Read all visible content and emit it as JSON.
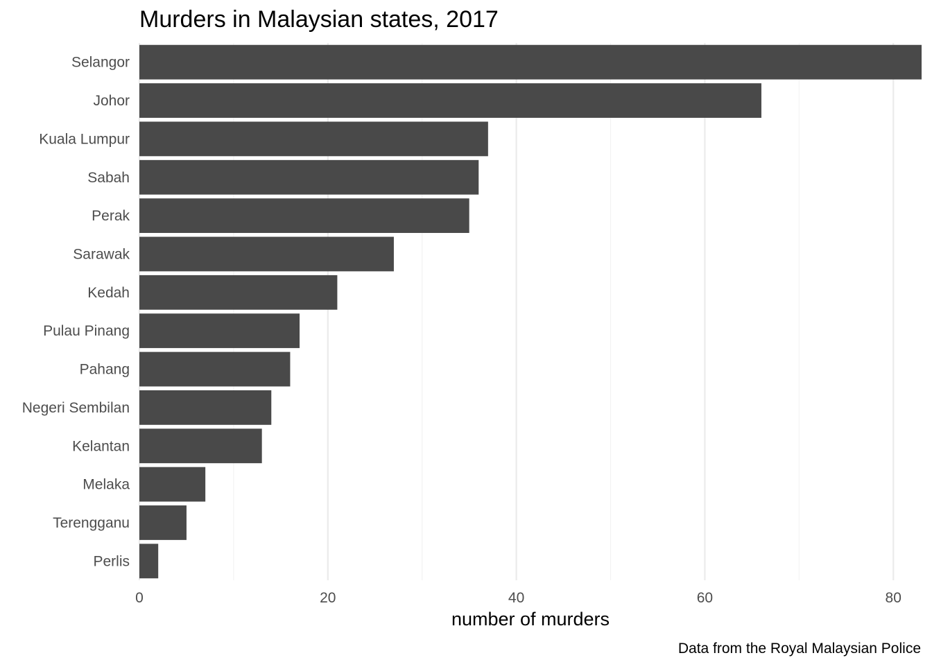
{
  "chart_data": {
    "type": "bar",
    "orientation": "horizontal",
    "title": "Murders in Malaysian states, 2017",
    "xlabel": "number of murders",
    "ylabel": "",
    "caption": "Data from the Royal Malaysian Police",
    "categories": [
      "Selangor",
      "Johor",
      "Kuala Lumpur",
      "Sabah",
      "Perak",
      "Sarawak",
      "Kedah",
      "Pulau Pinang",
      "Pahang",
      "Negeri Sembilan",
      "Kelantan",
      "Melaka",
      "Terengganu",
      "Perlis"
    ],
    "values": [
      83,
      66,
      37,
      36,
      35,
      27,
      21,
      17,
      16,
      14,
      13,
      7,
      5,
      2
    ],
    "xlim": [
      0,
      83
    ],
    "xticks": [
      0,
      20,
      40,
      60,
      80
    ],
    "xtick_labels": [
      "0",
      "20",
      "40",
      "60",
      "80"
    ],
    "minor_ticks": [
      10,
      30,
      50,
      70
    ],
    "grid": "vertical",
    "legend": "none",
    "bar_color": "#494949"
  }
}
